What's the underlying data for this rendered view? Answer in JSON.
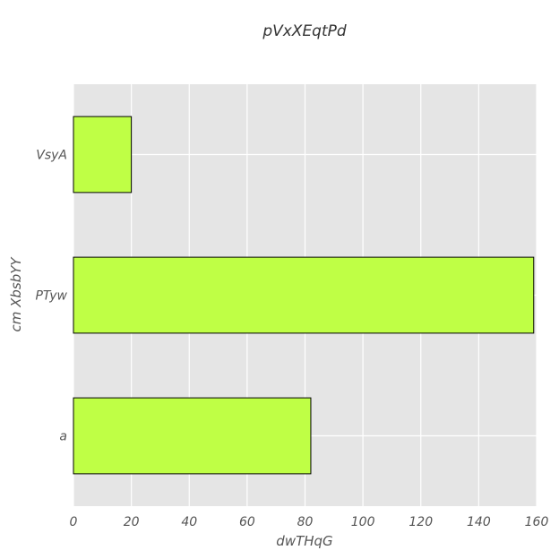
{
  "chart_data": {
    "type": "bar",
    "orientation": "horizontal",
    "title": "pVxXEqtPd",
    "xlabel": "dwTHqG",
    "ylabel": "cm XbsbYY",
    "categories": [
      "a",
      "PTyw",
      "VsyA"
    ],
    "values": [
      82,
      159,
      20
    ],
    "xlim": [
      0,
      160
    ],
    "xticks": [
      0,
      20,
      40,
      60,
      80,
      100,
      120,
      140,
      160
    ],
    "grid": true,
    "bar_color": "#bfff45",
    "bar_edge_color": "#000000",
    "background_color": "#e5e5e5",
    "grid_color": "#ffffff"
  }
}
